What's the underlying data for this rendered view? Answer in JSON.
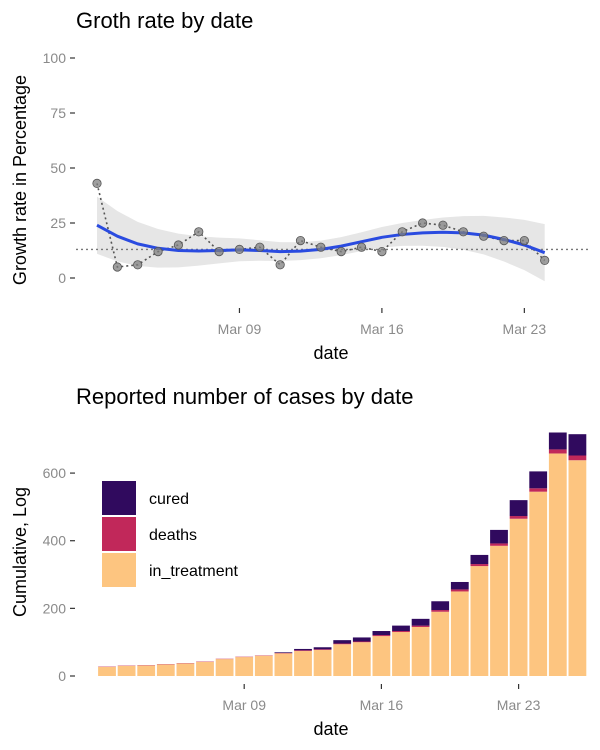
{
  "chart_data": [
    {
      "type": "line",
      "title": "Groth rate by date",
      "xlabel": "date",
      "ylabel": "Growth rate in Percentage",
      "ylim": [
        0,
        100
      ],
      "yticks": [
        0,
        25,
        50,
        75,
        100
      ],
      "xticks": [
        {
          "date": "2020-03-09",
          "label": "Mar 09"
        },
        {
          "date": "2020-03-16",
          "label": "Mar 16"
        },
        {
          "date": "2020-03-23",
          "label": "Mar 23"
        }
      ],
      "x": [
        "2020-03-02",
        "2020-03-03",
        "2020-03-04",
        "2020-03-05",
        "2020-03-06",
        "2020-03-07",
        "2020-03-08",
        "2020-03-09",
        "2020-03-10",
        "2020-03-11",
        "2020-03-12",
        "2020-03-13",
        "2020-03-14",
        "2020-03-15",
        "2020-03-16",
        "2020-03-17",
        "2020-03-18",
        "2020-03-19",
        "2020-03-20",
        "2020-03-21",
        "2020-03-22",
        "2020-03-23",
        "2020-03-24",
        "2020-03-25",
        "2020-03-26",
        "2020-03-27"
      ],
      "series": [
        {
          "values": [
            43,
            5,
            6,
            12,
            15,
            21,
            12,
            13,
            14,
            6,
            17,
            14,
            12,
            14,
            12,
            21,
            25,
            24,
            21,
            19,
            17,
            17,
            8,
            null,
            null,
            null
          ]
        }
      ],
      "smooth": [
        24,
        19,
        15.5,
        13.5,
        12.5,
        12.3,
        12.5,
        12.8,
        12.5,
        12,
        12.2,
        13,
        14.5,
        16.5,
        18.5,
        19.8,
        20.5,
        20.8,
        20.5,
        19.5,
        17.5,
        15,
        11.5
      ],
      "ref_line": 13,
      "colors": {
        "points": "#7f7f7f",
        "line": "#555555",
        "smooth": "#2a4be0",
        "band": "#e6e6e6",
        "ref": "#777777"
      },
      "grid": false
    },
    {
      "type": "bar",
      "stacked": true,
      "title": "Reported number of cases by date",
      "xlabel": "date",
      "ylabel": "Cumulative, Log",
      "ylim": [
        0,
        720
      ],
      "yticks": [
        0,
        200,
        400,
        600
      ],
      "xticks": [
        {
          "date": "2020-03-09",
          "label": "Mar 09"
        },
        {
          "date": "2020-03-16",
          "label": "Mar 16"
        },
        {
          "date": "2020-03-23",
          "label": "Mar 23"
        }
      ],
      "categories": [
        "2020-03-02",
        "2020-03-03",
        "2020-03-04",
        "2020-03-05",
        "2020-03-06",
        "2020-03-07",
        "2020-03-08",
        "2020-03-09",
        "2020-03-10",
        "2020-03-11",
        "2020-03-12",
        "2020-03-13",
        "2020-03-14",
        "2020-03-15",
        "2020-03-16",
        "2020-03-17",
        "2020-03-18",
        "2020-03-19",
        "2020-03-20",
        "2020-03-21",
        "2020-03-22",
        "2020-03-23",
        "2020-03-24",
        "2020-03-25",
        "2020-03-26",
        "2020-03-27"
      ],
      "series": [
        {
          "name": "in_treatment",
          "color": "#fdc580",
          "values": [
            27,
            30,
            31,
            34,
            37,
            42,
            50,
            56,
            60,
            67,
            74,
            77,
            94,
            100,
            118,
            130,
            145,
            190,
            250,
            325,
            385,
            465,
            545,
            658,
            638,
            null
          ]
        },
        {
          "name": "deaths",
          "color": "#c1285a",
          "values": [
            1,
            1,
            1,
            1,
            1,
            1,
            1,
            1,
            1,
            1,
            2,
            2,
            2,
            2,
            3,
            3,
            4,
            5,
            6,
            6,
            7,
            8,
            10,
            12,
            14,
            null
          ]
        },
        {
          "name": "cured",
          "color": "#300a5e",
          "values": [
            0,
            0,
            0,
            0,
            0,
            0,
            0,
            0,
            0,
            2,
            4,
            6,
            10,
            12,
            12,
            16,
            20,
            26,
            22,
            27,
            40,
            47,
            50,
            50,
            63,
            null
          ]
        }
      ],
      "legend": [
        "cured",
        "deaths",
        "in_treatment"
      ],
      "legend_position": "top-left",
      "grid": false
    }
  ]
}
